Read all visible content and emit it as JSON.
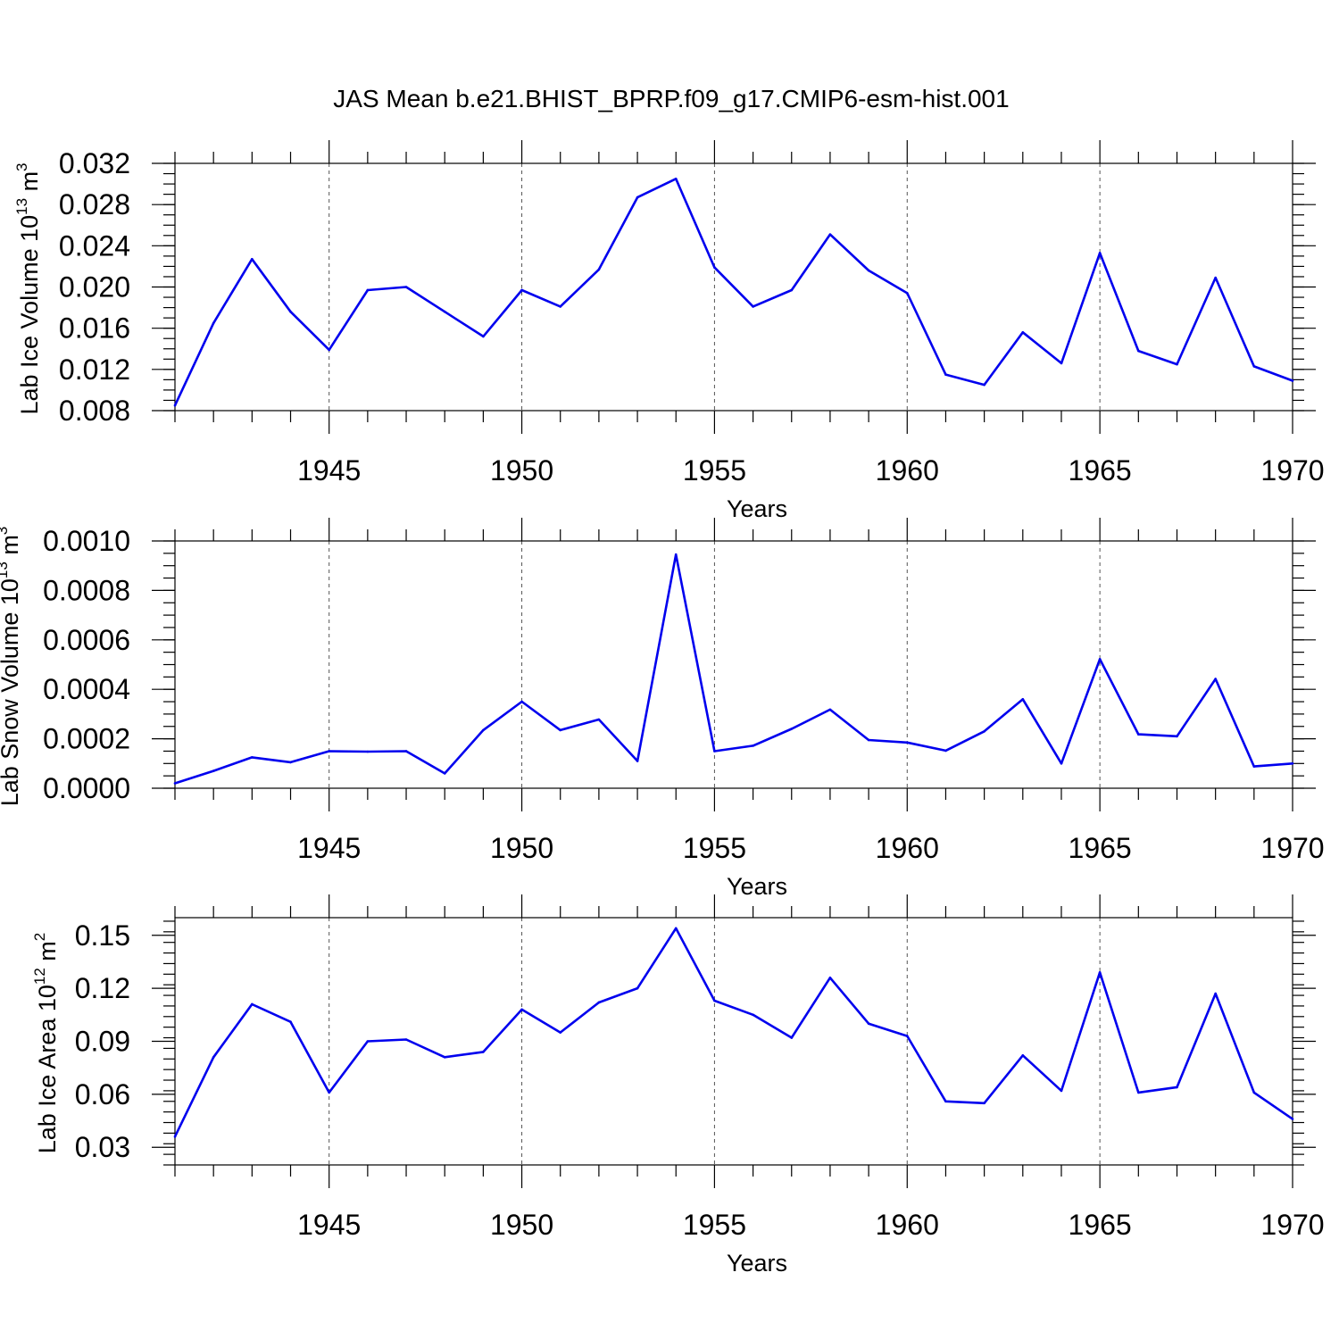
{
  "figure": {
    "title": "JAS Mean b.e21.BHIST_BPRP.f09_g17.CMIP6-esm-hist.001"
  },
  "colors": {
    "series": "#0000ee",
    "frame": "#000000",
    "grid": "#555555"
  },
  "chart_data": [
    {
      "type": "line",
      "id": "ice-volume",
      "ylabel": "Lab Ice Volume 10",
      "ylabel_exp": "13",
      "ylabel_unit": " m",
      "ylabel_unit_exp": "3",
      "xlabel": "Years",
      "xlim": [
        1941,
        1970
      ],
      "ylim": [
        0.008,
        0.032
      ],
      "yticks": [
        0.008,
        0.012,
        0.016,
        0.02,
        0.024,
        0.028,
        0.032
      ],
      "yticklabels": [
        "0.008",
        "0.012",
        "0.016",
        "0.020",
        "0.024",
        "0.028",
        "0.032"
      ],
      "yminor": 0.001,
      "xticks": [
        1945,
        1950,
        1955,
        1960,
        1965,
        1970
      ],
      "xticklabels": [
        "1945",
        "1950",
        "1955",
        "1960",
        "1965",
        "1970"
      ],
      "x": [
        1941,
        1942,
        1943,
        1944,
        1945,
        1946,
        1947,
        1948,
        1949,
        1950,
        1951,
        1952,
        1953,
        1954,
        1955,
        1956,
        1957,
        1958,
        1959,
        1960,
        1961,
        1962,
        1963,
        1964,
        1965,
        1966,
        1967,
        1968,
        1969,
        1970
      ],
      "values": [
        0.0085,
        0.0165,
        0.0227,
        0.0176,
        0.0139,
        0.0197,
        0.02,
        0.0176,
        0.0152,
        0.0197,
        0.0181,
        0.0217,
        0.0287,
        0.0305,
        0.0219,
        0.0181,
        0.0197,
        0.0251,
        0.0216,
        0.0194,
        0.0115,
        0.0105,
        0.0156,
        0.0126,
        0.0233,
        0.0138,
        0.0125,
        0.0209,
        0.0123,
        0.0109
      ]
    },
    {
      "type": "line",
      "id": "snow-volume",
      "ylabel": "Lab Snow Volume 10",
      "ylabel_exp": "13",
      "ylabel_unit": " m",
      "ylabel_unit_exp": "3",
      "xlabel": "Years",
      "xlim": [
        1941,
        1970
      ],
      "ylim": [
        0.0,
        0.001
      ],
      "yticks": [
        0.0,
        0.0002,
        0.0004,
        0.0006,
        0.0008,
        0.001
      ],
      "yticklabels": [
        "0.0000",
        "0.0002",
        "0.0004",
        "0.0006",
        "0.0008",
        "0.0010"
      ],
      "yminor": 5e-05,
      "xticks": [
        1945,
        1950,
        1955,
        1960,
        1965,
        1970
      ],
      "xticklabels": [
        "1945",
        "1950",
        "1955",
        "1960",
        "1965",
        "1970"
      ],
      "x": [
        1941,
        1942,
        1943,
        1944,
        1945,
        1946,
        1947,
        1948,
        1949,
        1950,
        1951,
        1952,
        1953,
        1954,
        1955,
        1956,
        1957,
        1958,
        1959,
        1960,
        1961,
        1962,
        1963,
        1964,
        1965,
        1966,
        1967,
        1968,
        1969,
        1970
      ],
      "values": [
        2e-05,
        7e-05,
        0.000125,
        0.000105,
        0.00015,
        0.000148,
        0.00015,
        6e-05,
        0.000235,
        0.00035,
        0.000235,
        0.000278,
        0.00011,
        0.000945,
        0.00015,
        0.000172,
        0.00024,
        0.000318,
        0.000195,
        0.000185,
        0.000152,
        0.00023,
        0.00036,
        0.0001,
        0.000522,
        0.000218,
        0.00021,
        0.000442,
        8.8e-05,
        0.0001
      ]
    },
    {
      "type": "line",
      "id": "ice-area",
      "ylabel": "Lab Ice Area 10",
      "ylabel_exp": "12",
      "ylabel_unit": " m",
      "ylabel_unit_exp": "2",
      "xlabel": "Years",
      "xlim": [
        1941,
        1970
      ],
      "ylim": [
        0.02,
        0.16
      ],
      "yticks": [
        0.03,
        0.06,
        0.09,
        0.12,
        0.15
      ],
      "yticklabels": [
        "0.03",
        "0.06",
        "0.09",
        "0.12",
        "0.15"
      ],
      "yminor": 0.006,
      "xticks": [
        1945,
        1950,
        1955,
        1960,
        1965,
        1970
      ],
      "xticklabels": [
        "1945",
        "1950",
        "1955",
        "1960",
        "1965",
        "1970"
      ],
      "x": [
        1941,
        1942,
        1943,
        1944,
        1945,
        1946,
        1947,
        1948,
        1949,
        1950,
        1951,
        1952,
        1953,
        1954,
        1955,
        1956,
        1957,
        1958,
        1959,
        1960,
        1961,
        1962,
        1963,
        1964,
        1965,
        1966,
        1967,
        1968,
        1969,
        1970
      ],
      "values": [
        0.036,
        0.081,
        0.111,
        0.101,
        0.061,
        0.09,
        0.091,
        0.081,
        0.084,
        0.108,
        0.095,
        0.112,
        0.12,
        0.154,
        0.113,
        0.105,
        0.092,
        0.126,
        0.1,
        0.093,
        0.056,
        0.055,
        0.082,
        0.062,
        0.129,
        0.061,
        0.064,
        0.117,
        0.061,
        0.046
      ]
    }
  ]
}
